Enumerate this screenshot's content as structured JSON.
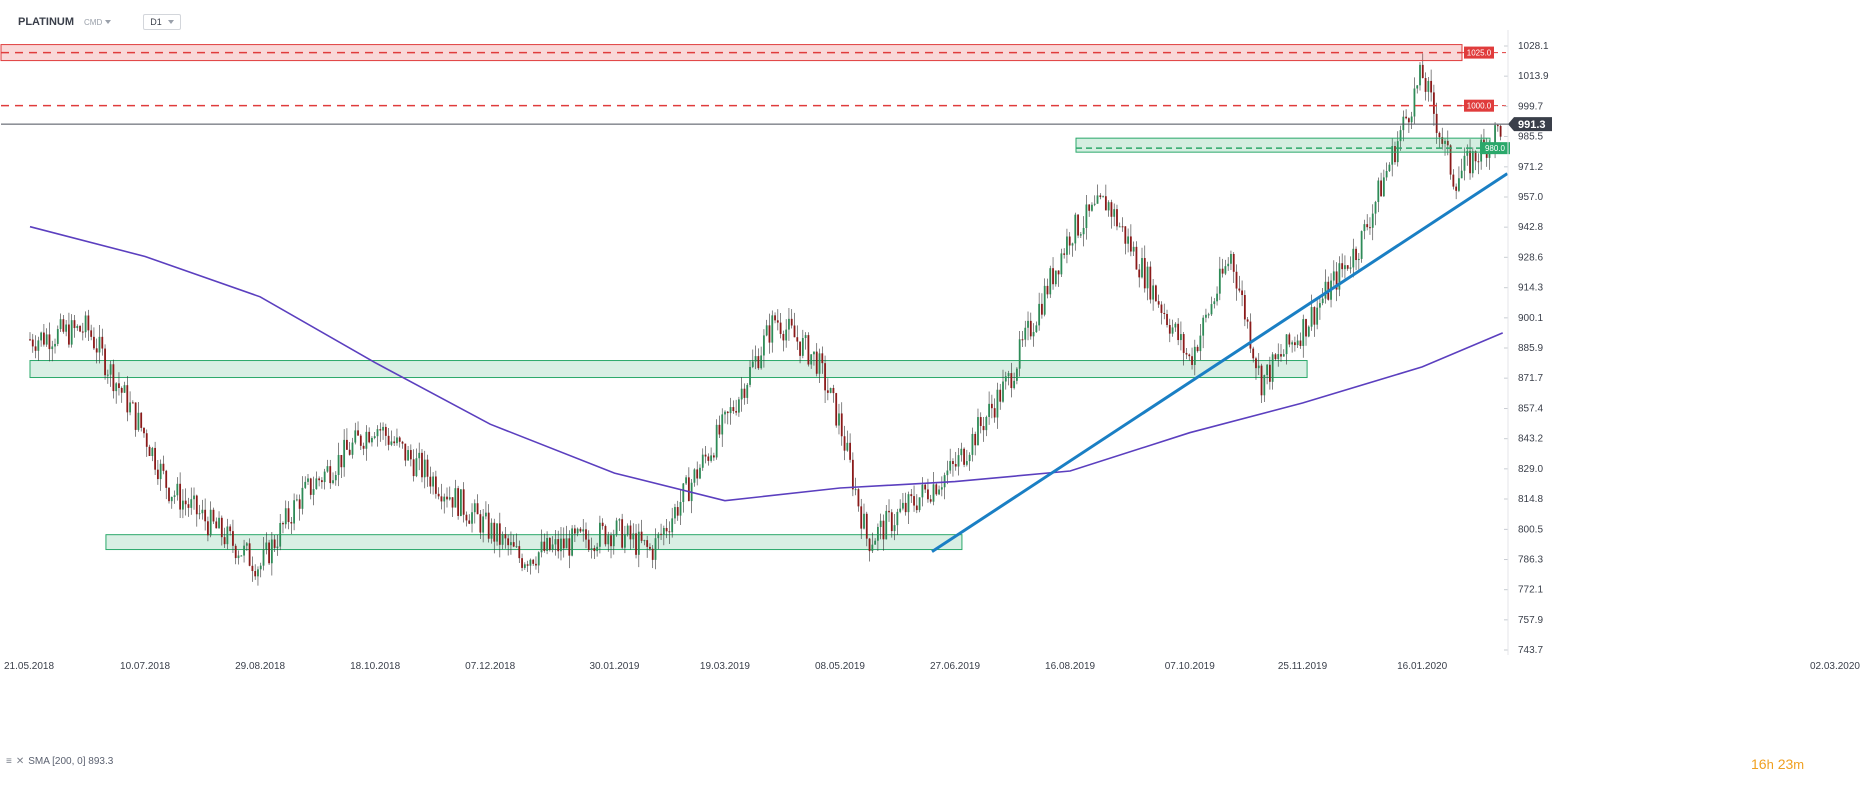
{
  "header": {
    "symbol": "PLATINUM",
    "source": "CMD",
    "timeframe": "D1"
  },
  "indicator": {
    "label": "SMA [200, 0] 893.3"
  },
  "timer": {
    "hours": "16",
    "h": "h",
    "minutes": "23",
    "m": "m"
  },
  "colors": {
    "candle_up": "#2e8b57",
    "candle_down": "#8b1a1a",
    "sma": "#5b3fbf",
    "trendline": "#1a7fc4",
    "resistance": "#e03c3c",
    "support": "#2aa86a",
    "price_tag": "#3a3f4a"
  },
  "chart_data": {
    "type": "candlestick",
    "y_axis_ticks": [
      "1028.1",
      "1013.9",
      "999.7",
      "985.5",
      "971.2",
      "957.0",
      "942.8",
      "928.6",
      "914.3",
      "900.1",
      "885.9",
      "871.7",
      "857.4",
      "843.2",
      "829.0",
      "814.8",
      "800.5",
      "786.3",
      "772.1",
      "757.9",
      "743.7"
    ],
    "ylim": [
      743.7,
      1035
    ],
    "x_axis_ticks": [
      "21.05.2018",
      "10.07.2018",
      "29.08.2018",
      "18.10.2018",
      "07.12.2018",
      "30.01.2019",
      "19.03.2019",
      "08.05.2019",
      "27.06.2019",
      "16.08.2019",
      "07.10.2019",
      "25.11.2019",
      "16.01.2020",
      "02.03.2020"
    ],
    "last_price": "991.3",
    "levels": [
      {
        "label": "1025.0",
        "value": 1025.0,
        "style": "resistance-zone"
      },
      {
        "label": "1000.0",
        "value": 1000.0,
        "style": "resistance-line"
      },
      {
        "label": "980.0",
        "value": 980.0,
        "style": "support-zone"
      }
    ],
    "support_zones": [
      {
        "from_date": "21.05.2018",
        "to_date": "27.11.2019",
        "low": 872,
        "high": 880
      },
      {
        "from_date": "23.06.2018",
        "to_date": "30.06.2019",
        "low": 791,
        "high": 798
      }
    ],
    "trendline": {
      "start": {
        "date": "17.06.2019",
        "value": 790
      },
      "end": {
        "date": "22.02.2020",
        "value": 968
      }
    },
    "sma_200": {
      "name": "SMA [200, 0]",
      "points": [
        [
          "21.05.2018",
          943
        ],
        [
          "10.07.2018",
          929
        ],
        [
          "29.08.2018",
          910
        ],
        [
          "18.10.2018",
          879
        ],
        [
          "07.12.2018",
          850
        ],
        [
          "30.01.2019",
          827
        ],
        [
          "19.03.2019",
          814
        ],
        [
          "08.05.2019",
          820
        ],
        [
          "27.06.2019",
          823
        ],
        [
          "16.08.2019",
          828
        ],
        [
          "07.10.2019",
          846
        ],
        [
          "25.11.2019",
          860
        ],
        [
          "16.01.2020",
          877
        ],
        [
          "20.02.2020",
          893
        ]
      ]
    },
    "price_path": [
      [
        "21.05.2018",
        890
      ],
      [
        "15.06.2018",
        895
      ],
      [
        "10.07.2018",
        845
      ],
      [
        "20.07.2018",
        820
      ],
      [
        "29.08.2018",
        783
      ],
      [
        "15.09.2018",
        815
      ],
      [
        "18.10.2018",
        850
      ],
      [
        "01.11.2018",
        835
      ],
      [
        "07.12.2018",
        800
      ],
      [
        "20.12.2018",
        787
      ],
      [
        "30.01.2019",
        800
      ],
      [
        "15.02.2019",
        790
      ],
      [
        "19.03.2019",
        850
      ],
      [
        "10.04.2019",
        900
      ],
      [
        "28.04.2019",
        880
      ],
      [
        "08.05.2019",
        850
      ],
      [
        "20.05.2019",
        795
      ],
      [
        "27.06.2019",
        830
      ],
      [
        "20.07.2019",
        870
      ],
      [
        "16.08.2019",
        940
      ],
      [
        "01.09.2019",
        955
      ],
      [
        "07.10.2019",
        880
      ],
      [
        "25.10.2019",
        930
      ],
      [
        "07.11.2019",
        870
      ],
      [
        "25.11.2019",
        895
      ],
      [
        "20.12.2019",
        935
      ],
      [
        "16.01.2020",
        1015
      ],
      [
        "30.01.2020",
        965
      ],
      [
        "20.02.2020",
        991
      ]
    ]
  }
}
